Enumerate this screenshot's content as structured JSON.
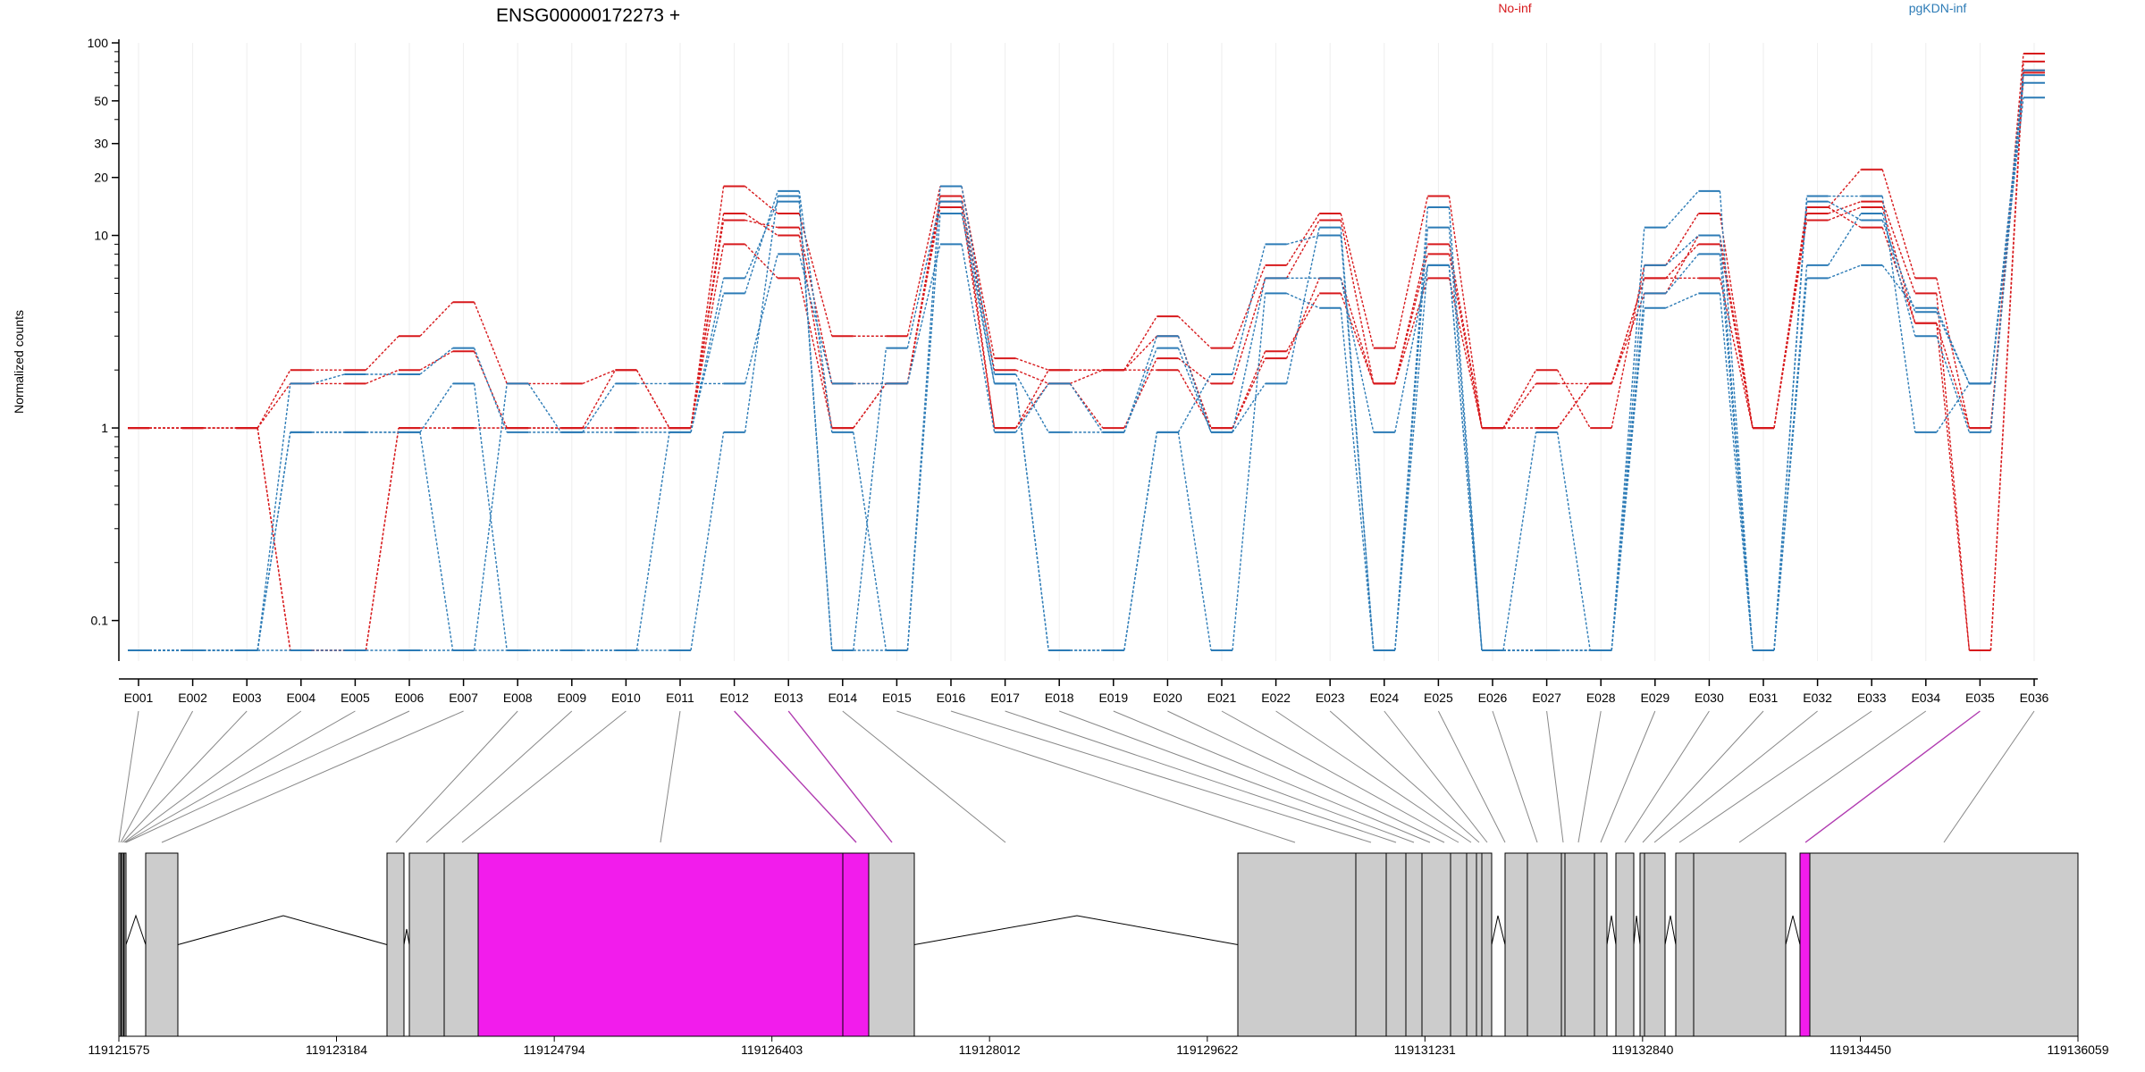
{
  "chart_data": {
    "type": "line",
    "title": "ENSG00000172273 +",
    "ylabel": "Normalized counts",
    "xlabel": "",
    "yscale": "log",
    "ylim": [
      0.07,
      100
    ],
    "yticks": [
      {
        "value": 100,
        "label": "100"
      },
      {
        "value": 50,
        "label": "50"
      },
      {
        "value": 30,
        "label": "30"
      },
      {
        "value": 20,
        "label": "20"
      },
      {
        "value": 10,
        "label": "10"
      },
      {
        "value": 1,
        "label": "1"
      },
      {
        "value": 0.1,
        "label": "0.1"
      }
    ],
    "categories": [
      "E001",
      "E002",
      "E003",
      "E004",
      "E005",
      "E006",
      "E007",
      "E008",
      "E009",
      "E010",
      "E011",
      "E012",
      "E013",
      "E014",
      "E015",
      "E016",
      "E017",
      "E018",
      "E019",
      "E020",
      "E021",
      "E022",
      "E023",
      "E024",
      "E025",
      "E026",
      "E027",
      "E028",
      "E029",
      "E030",
      "E031",
      "E032",
      "E033",
      "E034",
      "E035",
      "E036"
    ],
    "legend_placement": "top",
    "conditions": [
      {
        "label": "No-inf",
        "color": "#d7191c"
      },
      {
        "label": "pgKDN-inf",
        "color": "#2c7bb6"
      }
    ],
    "series": [
      {
        "group": 0,
        "values": [
          1,
          1,
          1,
          2,
          2,
          3,
          4.5,
          1.7,
          1.7,
          2,
          1,
          18,
          13,
          3,
          3,
          18,
          2.3,
          2,
          2,
          3.8,
          2.6,
          7,
          13,
          2.6,
          16,
          1,
          2,
          1,
          7,
          13,
          1,
          14,
          22,
          6,
          1,
          88
        ]
      },
      {
        "group": 0,
        "values": [
          1,
          1,
          1,
          1.7,
          1.7,
          2,
          2.5,
          1,
          1,
          1,
          1,
          12,
          11,
          1.7,
          1.7,
          15,
          2,
          1.7,
          1,
          2.3,
          1.7,
          6,
          12,
          1.7,
          9,
          1,
          1.7,
          1.7,
          5,
          10,
          1,
          13,
          15,
          5,
          0.07,
          80
        ]
      },
      {
        "group": 0,
        "values": [
          1,
          1,
          1,
          0.07,
          0.07,
          1,
          1,
          1,
          1,
          2,
          1,
          13,
          10,
          1,
          1.7,
          14,
          1,
          1.7,
          2,
          2,
          1,
          2.5,
          5,
          1.7,
          8,
          1,
          1,
          1.7,
          6,
          9,
          1,
          14,
          11,
          3.5,
          0.07,
          72
        ]
      },
      {
        "group": 0,
        "values": [
          1,
          1,
          1,
          0.07,
          0.07,
          1,
          1,
          1,
          1,
          1,
          1,
          9,
          6,
          1,
          1.7,
          16,
          1,
          2,
          2,
          3,
          1,
          2.3,
          6,
          1.7,
          6,
          1,
          1,
          1.7,
          6,
          6,
          1,
          12,
          14,
          3.5,
          1,
          70
        ]
      },
      {
        "group": 1,
        "values": [
          0.07,
          0.07,
          0.07,
          0.95,
          0.95,
          0.95,
          0.07,
          1.7,
          0.95,
          1.7,
          1.7,
          1.7,
          8,
          1.7,
          1.7,
          9,
          0.95,
          1.7,
          0.95,
          3,
          0.95,
          6,
          6,
          0.95,
          7,
          0.07,
          0.95,
          0.07,
          7,
          10,
          0.07,
          6,
          7,
          4.2,
          1.7,
          68
        ]
      },
      {
        "group": 1,
        "values": [
          0.07,
          0.07,
          0.07,
          1.7,
          1.9,
          1.9,
          2.6,
          0.95,
          0.95,
          0.95,
          0.95,
          5,
          17,
          0.95,
          0.07,
          18,
          1.9,
          0.95,
          0.95,
          2.6,
          0.95,
          1.7,
          11,
          0.07,
          14,
          0.07,
          0.07,
          0.07,
          11,
          17,
          0.07,
          16,
          16,
          0.95,
          1.7,
          52
        ]
      },
      {
        "group": 1,
        "values": [
          0.07,
          0.07,
          0.07,
          0.95,
          0.95,
          0.95,
          1.7,
          0.07,
          0.07,
          0.07,
          0.95,
          6,
          15,
          0.07,
          2.6,
          15,
          1.7,
          0.07,
          0.07,
          0.95,
          1.9,
          9,
          10,
          0.07,
          11,
          0.07,
          0.07,
          0.07,
          5,
          8,
          0.07,
          15,
          12,
          4,
          1.7,
          62
        ]
      },
      {
        "group": 1,
        "values": [
          0.07,
          0.07,
          0.07,
          0.07,
          0.07,
          0.07,
          0.07,
          0.07,
          0.07,
          0.07,
          0.07,
          0.95,
          16,
          0.07,
          0.07,
          13,
          1.7,
          0.07,
          0.07,
          0.95,
          0.07,
          5,
          4.2,
          0.07,
          7,
          0.07,
          0.07,
          0.07,
          4.2,
          5,
          0.07,
          7,
          13,
          3,
          0.95,
          72
        ]
      }
    ],
    "gene_model": {
      "coord_ticks": [
        {
          "value": 119121575,
          "label": "119121575"
        },
        {
          "value": 119123184,
          "label": "119123184"
        },
        {
          "value": 119124794,
          "label": "119124794"
        },
        {
          "value": 119126403,
          "label": "119126403"
        },
        {
          "value": 119128012,
          "label": "119128012"
        },
        {
          "value": 119129622,
          "label": "119129622"
        },
        {
          "value": 119131231,
          "label": "119131231"
        },
        {
          "value": 119132840,
          "label": "119132840"
        },
        {
          "value": 119134450,
          "label": "119134450"
        },
        {
          "value": 119136059,
          "label": "119136059"
        }
      ],
      "exon_fill": "#cccccc",
      "highlight_fill": "#f21cec",
      "highlighted_exons": [
        "E012",
        "E013",
        "E035"
      ]
    }
  }
}
